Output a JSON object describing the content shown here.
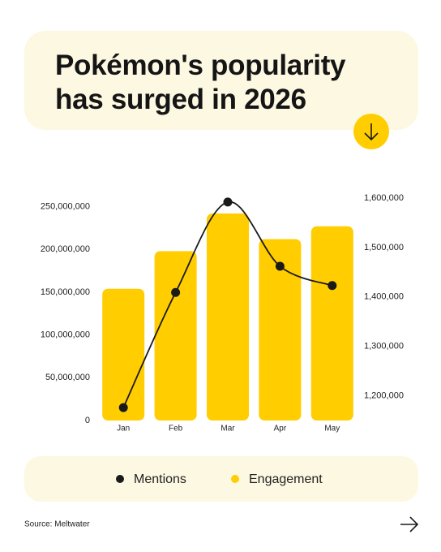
{
  "title": "Pokémon's popularity has surged in 2026",
  "source": "Source: Meltwater",
  "chart_data": {
    "type": "bar",
    "categories": [
      "Jan",
      "Feb",
      "Mar",
      "Apr",
      "May"
    ],
    "series": [
      {
        "name": "Mentions",
        "type": "line",
        "axis": "y2",
        "color": "#1a1a1a",
        "values": [
          1176000,
          1409000,
          1592000,
          1462000,
          1423000
        ]
      },
      {
        "name": "Engagement",
        "type": "bar",
        "axis": "y",
        "color": "#ffcd00",
        "values": [
          154000000,
          198000000,
          242000000,
          212000000,
          227000000
        ]
      }
    ],
    "ylim": [
      0,
      260000000
    ],
    "yticks": [
      0,
      {
        "value": 50000000,
        "label": "50,000,000"
      },
      {
        "value": 100000000,
        "label": "100,000,000"
      },
      {
        "value": 150000000,
        "label": "150,000,000"
      },
      {
        "value": 200000000,
        "label": "200,000,000"
      },
      {
        "value": 250000000,
        "label": "250,000,000"
      }
    ],
    "y2lim": [
      1150000,
      1600000
    ],
    "y2ticks": [
      {
        "value": 1200000,
        "label": "1,200,000"
      },
      {
        "value": 1300000,
        "label": "1,300,000"
      },
      {
        "value": 1400000,
        "label": "1,400,000"
      },
      {
        "value": 1500000,
        "label": "1,500,000"
      },
      {
        "value": 1600000,
        "label": "1,600,000"
      }
    ],
    "legend": "bottom"
  }
}
